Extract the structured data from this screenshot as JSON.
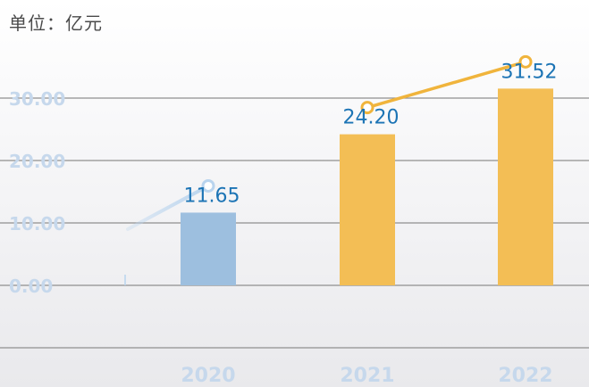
{
  "chart_data": {
    "type": "bar",
    "unit_label": "单位：亿元",
    "categories": [
      "2020",
      "2021",
      "2022"
    ],
    "values": [
      11.65,
      24.2,
      31.52
    ],
    "value_labels": [
      "11.65",
      "24.20",
      "31.52"
    ],
    "y_ticks": [
      "0.00",
      "10.00",
      "20.00",
      "30.00"
    ],
    "ylim": [
      -10,
      40
    ],
    "grid": true,
    "bar_colors": [
      "#9dbfdf",
      "#f3be55",
      "#f3be55"
    ],
    "trend_line_colors": [
      "#b9d4ee",
      "#f0b43c"
    ],
    "tick_label_color": "#c6d8ec",
    "value_label_color": "#1c74b5"
  }
}
